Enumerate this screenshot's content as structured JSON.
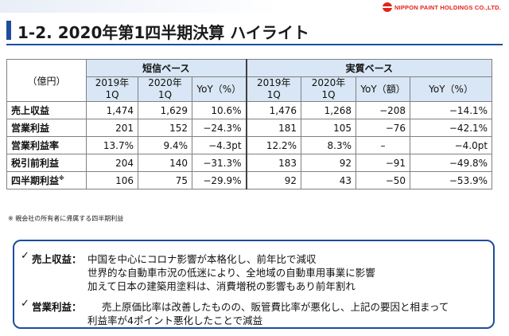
{
  "brand": {
    "logo_text": "NIPPON PAINT HOLDINGS CO.,LTD."
  },
  "title": "1-2. 2020年第1四半期決算 ハイライト",
  "table": {
    "unit": "（億円）",
    "groups": [
      "短信ベース",
      "実質ベース"
    ],
    "headers": {
      "g1": [
        {
          "l1": "2019年",
          "l2": "1Q"
        },
        {
          "l1": "2020年",
          "l2": "1Q"
        },
        {
          "l1": "YoY（%）",
          "l2": ""
        }
      ],
      "g2": [
        {
          "l1": "2019年",
          "l2": "1Q"
        },
        {
          "l1": "2020年",
          "l2": "1Q"
        },
        {
          "l1": "YoY（額）",
          "l2": ""
        },
        {
          "l1": "YoY（%）",
          "l2": ""
        }
      ]
    },
    "rows": [
      {
        "label": "売上収益",
        "sup": "",
        "v": [
          "1,474",
          "1,629",
          "10.6%",
          "1,476",
          "1,268",
          "−208",
          "−14.1%"
        ]
      },
      {
        "label": "営業利益",
        "sup": "",
        "v": [
          "201",
          "152",
          "−24.3%",
          "181",
          "105",
          "−76",
          "−42.1%"
        ]
      },
      {
        "label": "営業利益率",
        "sup": "",
        "v": [
          "13.7%",
          "9.4%",
          "−4.3pt",
          "12.2%",
          "8.3%",
          "–",
          "−4.0pt"
        ]
      },
      {
        "label": "税引前利益",
        "sup": "",
        "v": [
          "204",
          "140",
          "−31.3%",
          "183",
          "92",
          "−91",
          "−49.8%"
        ]
      },
      {
        "label": "四半期利益",
        "sup": "※",
        "v": [
          "106",
          "75",
          "−29.9%",
          "92",
          "43",
          "−50",
          "−53.9%"
        ]
      }
    ],
    "footnote": "※ 親会社の所有者に帰属する四半期利益"
  },
  "notes": [
    {
      "check": "✓",
      "label": "売上収益：",
      "lines": [
        "中国を中心にコロナ影響が本格化し、前年比で減収",
        "世界的な自動車市況の低迷により、全地域の自動車用事業に影響",
        "加えて日本の建築用塗料は、消費増税の影響もあり前年割れ"
      ]
    },
    {
      "check": "✓",
      "label": "営業利益：",
      "lines": [
        "売上原価比率は改善したものの、販管費比率が悪化し、上記の要因と相まって",
        "利益率が4ポイント悪化したことで減益"
      ]
    }
  ]
}
